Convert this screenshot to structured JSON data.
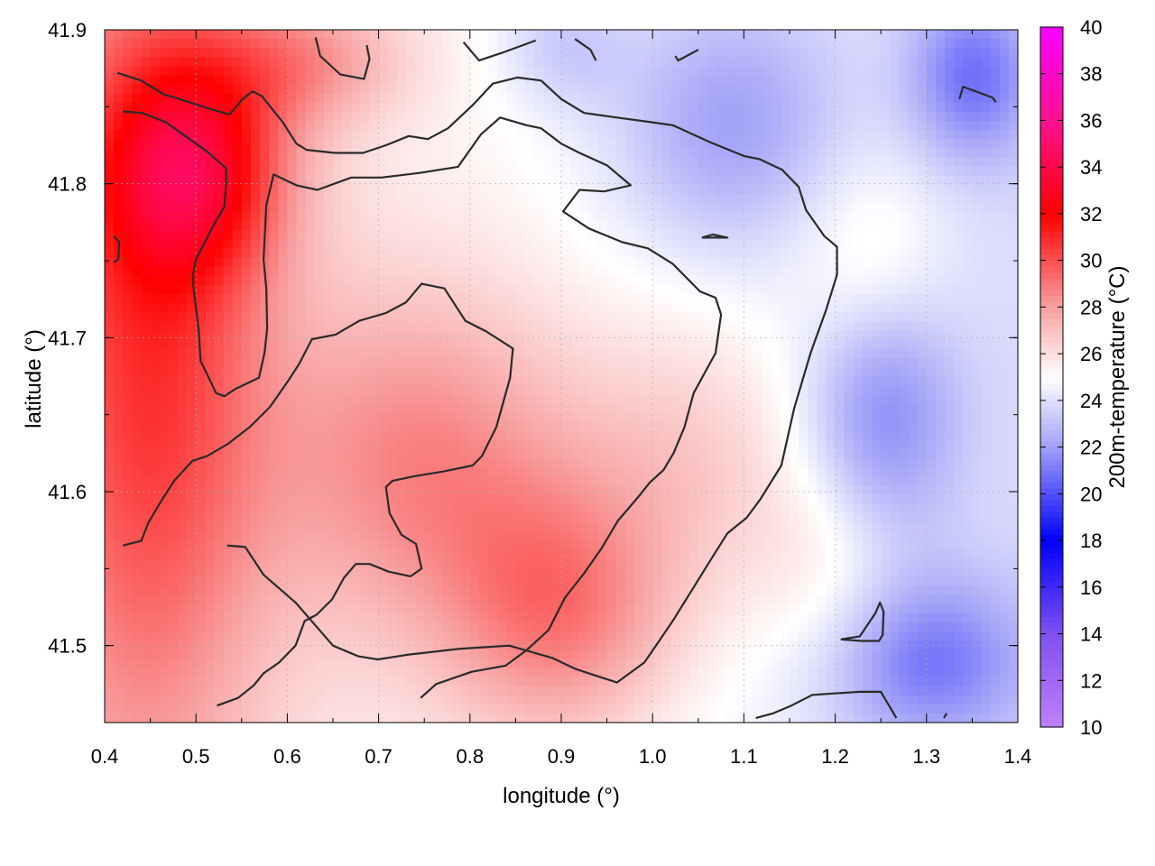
{
  "chart_data": {
    "type": "heatmap",
    "title": "",
    "xlabel": "longitude (°)",
    "ylabel": "latitude (°)",
    "colorbar_label": "200m-temperature (°C)",
    "xlim": [
      0.4,
      1.4
    ],
    "ylim": [
      41.45,
      41.9
    ],
    "x_ticks": [
      "0.4",
      "0.5",
      "0.6",
      "0.7",
      "0.8",
      "0.9",
      "1.0",
      "1.1",
      "1.2",
      "1.3",
      "1.4"
    ],
    "y_ticks": [
      "41.5",
      "41.6",
      "41.7",
      "41.8",
      "41.9"
    ],
    "colorbar_range": [
      10,
      40
    ],
    "colorbar_ticks": [
      "10",
      "12",
      "14",
      "16",
      "18",
      "20",
      "22",
      "24",
      "26",
      "28",
      "30",
      "32",
      "34",
      "36",
      "38",
      "40"
    ],
    "colorbar_stops": [
      {
        "value": 10,
        "color": "#c080f8"
      },
      {
        "value": 14,
        "color": "#8050f0"
      },
      {
        "value": 18,
        "color": "#0000ff"
      },
      {
        "value": 22,
        "color": "#a0a0f8"
      },
      {
        "value": 25,
        "color": "#ffffff"
      },
      {
        "value": 28,
        "color": "#f8a0a0"
      },
      {
        "value": 32,
        "color": "#ff0000"
      },
      {
        "value": 36,
        "color": "#ff1090"
      },
      {
        "value": 40,
        "color": "#ff00ff"
      }
    ],
    "grid": true,
    "temperature_blobs": [
      {
        "lon": 0.45,
        "lat": 41.7,
        "value": 29.8,
        "spread_lon": 0.09,
        "spread_lat": 0.2
      },
      {
        "lon": 0.5,
        "lat": 41.81,
        "value": 30.0,
        "spread_lon": 0.07,
        "spread_lat": 0.05
      },
      {
        "lon": 0.75,
        "lat": 41.62,
        "value": 28.3,
        "spread_lon": 0.12,
        "spread_lat": 0.08
      },
      {
        "lon": 0.9,
        "lat": 41.52,
        "value": 28.5,
        "spread_lon": 0.09,
        "spread_lat": 0.06
      },
      {
        "lon": 0.62,
        "lat": 41.88,
        "value": 27.5,
        "spread_lon": 0.08,
        "spread_lat": 0.03
      },
      {
        "lon": 1.05,
        "lat": 41.62,
        "value": 26.8,
        "spread_lon": 0.1,
        "spread_lat": 0.07
      },
      {
        "lon": 1.2,
        "lat": 41.55,
        "value": 26.2,
        "spread_lon": 0.06,
        "spread_lat": 0.05
      },
      {
        "lon": 1.24,
        "lat": 41.75,
        "value": 26.5,
        "spread_lon": 0.06,
        "spread_lat": 0.05
      },
      {
        "lon": 1.08,
        "lat": 41.84,
        "value": 22.5,
        "spread_lon": 0.09,
        "spread_lat": 0.06
      },
      {
        "lon": 1.25,
        "lat": 41.65,
        "value": 22.0,
        "spread_lon": 0.06,
        "spread_lat": 0.06
      },
      {
        "lon": 1.35,
        "lat": 41.87,
        "value": 21.8,
        "spread_lon": 0.05,
        "spread_lat": 0.04
      },
      {
        "lon": 1.3,
        "lat": 41.49,
        "value": 21.8,
        "spread_lon": 0.08,
        "spread_lat": 0.04
      },
      {
        "lon": 0.9,
        "lat": 41.89,
        "value": 23.5,
        "spread_lon": 0.05,
        "spread_lat": 0.03
      }
    ],
    "contours": [
      [
        [
          0.414,
          41.872
        ],
        [
          0.44,
          41.867
        ],
        [
          0.465,
          41.858
        ],
        [
          0.487,
          41.854
        ],
        [
          0.513,
          41.849
        ],
        [
          0.537,
          41.845
        ],
        [
          0.551,
          41.855
        ],
        [
          0.562,
          41.86
        ],
        [
          0.572,
          41.857
        ],
        [
          0.595,
          41.84
        ],
        [
          0.61,
          41.826
        ],
        [
          0.621,
          41.822
        ],
        [
          0.652,
          41.82
        ],
        [
          0.683,
          41.82
        ],
        [
          0.708,
          41.825
        ],
        [
          0.733,
          41.831
        ],
        [
          0.754,
          41.829
        ],
        [
          0.776,
          41.836
        ],
        [
          0.803,
          41.851
        ],
        [
          0.825,
          41.865
        ],
        [
          0.852,
          41.869
        ],
        [
          0.878,
          41.867
        ],
        [
          0.9,
          41.855
        ],
        [
          0.925,
          41.846
        ],
        [
          0.961,
          41.843
        ],
        [
          0.998,
          41.84
        ],
        [
          1.022,
          41.838
        ],
        [
          1.063,
          41.827
        ],
        [
          1.1,
          41.818
        ],
        [
          1.117,
          41.816
        ],
        [
          1.142,
          41.809
        ],
        [
          1.16,
          41.798
        ],
        [
          1.168,
          41.783
        ],
        [
          1.188,
          41.766
        ],
        [
          1.202,
          41.759
        ],
        [
          1.202,
          41.741
        ],
        [
          1.19,
          41.718
        ],
        [
          1.173,
          41.69
        ],
        [
          1.155,
          41.654
        ],
        [
          1.141,
          41.617
        ],
        [
          1.118,
          41.595
        ],
        [
          1.103,
          41.583
        ],
        [
          1.082,
          41.573
        ],
        [
          1.065,
          41.557
        ],
        [
          1.042,
          41.535
        ],
        [
          1.022,
          41.516
        ],
        [
          1.006,
          41.502
        ],
        [
          0.991,
          41.489
        ],
        [
          0.961,
          41.476
        ],
        [
          0.935,
          41.481
        ],
        [
          0.915,
          41.485
        ],
        [
          0.89,
          41.492
        ],
        [
          0.843,
          41.5
        ],
        [
          0.79,
          41.498
        ],
        [
          0.731,
          41.494
        ],
        [
          0.699,
          41.491
        ],
        [
          0.678,
          41.493
        ],
        [
          0.65,
          41.5
        ],
        [
          0.609,
          41.528
        ],
        [
          0.574,
          41.546
        ],
        [
          0.554,
          41.564
        ],
        [
          0.534,
          41.565
        ]
      ],
      [
        [
          0.42,
          41.847
        ],
        [
          0.441,
          41.846
        ],
        [
          0.467,
          41.84
        ],
        [
          0.493,
          41.829
        ],
        [
          0.512,
          41.821
        ],
        [
          0.533,
          41.81
        ],
        [
          0.533,
          41.8
        ],
        [
          0.531,
          41.785
        ],
        [
          0.521,
          41.775
        ],
        [
          0.508,
          41.76
        ],
        [
          0.5,
          41.751
        ],
        [
          0.497,
          41.742
        ],
        [
          0.497,
          41.734
        ],
        [
          0.503,
          41.705
        ],
        [
          0.505,
          41.685
        ],
        [
          0.522,
          41.664
        ],
        [
          0.531,
          41.662
        ],
        [
          0.544,
          41.667
        ],
        [
          0.569,
          41.674
        ],
        [
          0.575,
          41.69
        ],
        [
          0.578,
          41.706
        ],
        [
          0.577,
          41.732
        ],
        [
          0.574,
          41.751
        ],
        [
          0.577,
          41.786
        ],
        [
          0.585,
          41.806
        ],
        [
          0.61,
          41.799
        ],
        [
          0.633,
          41.796
        ],
        [
          0.67,
          41.804
        ],
        [
          0.703,
          41.804
        ],
        [
          0.745,
          41.807
        ],
        [
          0.787,
          41.811
        ],
        [
          0.812,
          41.832
        ],
        [
          0.833,
          41.843
        ],
        [
          0.862,
          41.838
        ],
        [
          0.878,
          41.836
        ],
        [
          0.9,
          41.826
        ],
        [
          0.92,
          41.82
        ],
        [
          0.95,
          41.812
        ],
        [
          0.976,
          41.799
        ],
        [
          0.947,
          41.795
        ],
        [
          0.92,
          41.796
        ],
        [
          0.902,
          41.782
        ],
        [
          0.93,
          41.771
        ],
        [
          0.967,
          41.762
        ],
        [
          0.995,
          41.758
        ],
        [
          1.022,
          41.748
        ],
        [
          1.052,
          41.73
        ],
        [
          1.069,
          41.726
        ],
        [
          1.075,
          41.715
        ],
        [
          1.069,
          41.69
        ],
        [
          1.045,
          41.664
        ],
        [
          1.035,
          41.642
        ],
        [
          1.023,
          41.625
        ],
        [
          1.012,
          41.614
        ],
        [
          0.997,
          41.606
        ],
        [
          0.985,
          41.597
        ],
        [
          0.962,
          41.581
        ],
        [
          0.944,
          41.563
        ],
        [
          0.925,
          41.547
        ],
        [
          0.904,
          41.531
        ],
        [
          0.886,
          41.51
        ],
        [
          0.862,
          41.497
        ],
        [
          0.839,
          41.487
        ],
        [
          0.802,
          41.483
        ],
        [
          0.763,
          41.475
        ],
        [
          0.746,
          41.466
        ]
      ],
      [
        [
          0.42,
          41.565
        ],
        [
          0.44,
          41.568
        ],
        [
          0.448,
          41.58
        ],
        [
          0.461,
          41.593
        ],
        [
          0.476,
          41.607
        ],
        [
          0.496,
          41.62
        ],
        [
          0.512,
          41.623
        ],
        [
          0.535,
          41.631
        ],
        [
          0.559,
          41.642
        ],
        [
          0.581,
          41.655
        ],
        [
          0.601,
          41.672
        ],
        [
          0.613,
          41.683
        ],
        [
          0.627,
          41.699
        ],
        [
          0.653,
          41.702
        ],
        [
          0.679,
          41.711
        ],
        [
          0.708,
          41.716
        ],
        [
          0.73,
          41.723
        ],
        [
          0.747,
          41.735
        ],
        [
          0.772,
          41.732
        ],
        [
          0.795,
          41.711
        ],
        [
          0.818,
          41.704
        ],
        [
          0.847,
          41.693
        ],
        [
          0.844,
          41.674
        ],
        [
          0.829,
          41.642
        ],
        [
          0.813,
          41.623
        ],
        [
          0.803,
          41.617
        ],
        [
          0.77,
          41.613
        ],
        [
          0.739,
          41.61
        ],
        [
          0.715,
          41.607
        ],
        [
          0.708,
          41.603
        ],
        [
          0.712,
          41.586
        ],
        [
          0.725,
          41.572
        ],
        [
          0.741,
          41.566
        ],
        [
          0.747,
          41.55
        ],
        [
          0.735,
          41.545
        ],
        [
          0.711,
          41.548
        ],
        [
          0.69,
          41.553
        ],
        [
          0.675,
          41.553
        ],
        [
          0.662,
          41.544
        ],
        [
          0.649,
          41.53
        ],
        [
          0.632,
          41.52
        ],
        [
          0.619,
          41.516
        ],
        [
          0.609,
          41.5
        ],
        [
          0.591,
          41.489
        ],
        [
          0.574,
          41.482
        ],
        [
          0.563,
          41.474
        ],
        [
          0.546,
          41.466
        ],
        [
          0.523,
          41.461
        ]
      ],
      [
        [
          1.113,
          41.453
        ],
        [
          1.132,
          41.456
        ],
        [
          1.152,
          41.461
        ],
        [
          1.175,
          41.468
        ],
        [
          1.227,
          41.47
        ],
        [
          1.25,
          41.47
        ],
        [
          1.267,
          41.453
        ]
      ],
      [
        [
          1.206,
          41.504
        ],
        [
          1.229,
          41.503
        ],
        [
          1.248,
          41.503
        ],
        [
          1.252,
          41.507
        ],
        [
          1.253,
          41.522
        ],
        [
          1.249,
          41.528
        ],
        [
          1.244,
          41.521
        ],
        [
          1.227,
          41.506
        ],
        [
          1.206,
          41.504
        ]
      ],
      [
        [
          1.336,
          41.855
        ],
        [
          1.34,
          41.863
        ],
        [
          1.372,
          41.856
        ],
        [
          1.376,
          41.853
        ]
      ],
      [
        [
          1.319,
          41.453
        ],
        [
          1.322,
          41.456
        ]
      ],
      [
        [
          0.41,
          41.749
        ],
        [
          0.415,
          41.751
        ],
        [
          0.416,
          41.762
        ],
        [
          0.41,
          41.766
        ]
      ],
      [
        [
          0.631,
          41.895
        ],
        [
          0.636,
          41.883
        ],
        [
          0.658,
          41.871
        ],
        [
          0.684,
          41.868
        ],
        [
          0.69,
          41.881
        ],
        [
          0.687,
          41.89
        ]
      ],
      [
        [
          0.793,
          41.892
        ],
        [
          0.81,
          41.88
        ],
        [
          0.835,
          41.885
        ],
        [
          0.872,
          41.893
        ]
      ],
      [
        [
          0.915,
          41.894
        ],
        [
          0.932,
          41.887
        ],
        [
          0.938,
          41.88
        ]
      ],
      [
        [
          1.025,
          41.883
        ],
        [
          1.028,
          41.88
        ],
        [
          1.05,
          41.887
        ]
      ],
      [
        [
          1.054,
          41.765
        ],
        [
          1.066,
          41.767
        ],
        [
          1.082,
          41.765
        ],
        [
          1.054,
          41.765
        ]
      ]
    ]
  }
}
